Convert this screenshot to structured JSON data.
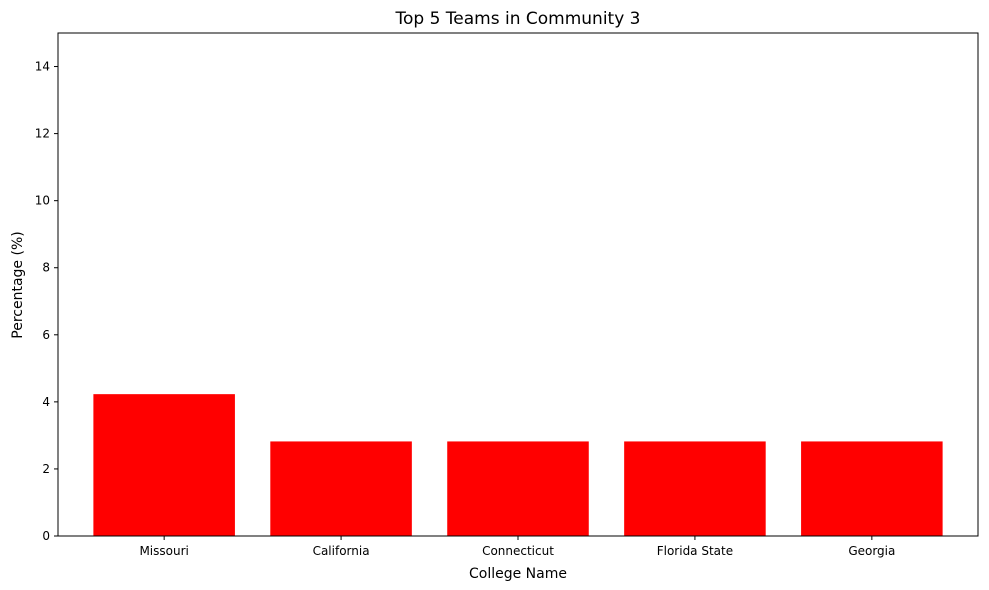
{
  "chart_data": {
    "type": "bar",
    "title": "Top 5 Teams in Community 3",
    "xlabel": "College Name",
    "ylabel": "Percentage (%)",
    "categories": [
      "Missouri",
      "California",
      "Connecticut",
      "Florida State",
      "Georgia"
    ],
    "values": [
      4.23,
      2.82,
      2.82,
      2.82,
      2.82
    ],
    "ylim": [
      0,
      15
    ],
    "yticks": [
      0,
      2,
      4,
      6,
      8,
      10,
      12,
      14
    ],
    "bar_color": "#ff0000",
    "grid": false,
    "legend": "none"
  }
}
